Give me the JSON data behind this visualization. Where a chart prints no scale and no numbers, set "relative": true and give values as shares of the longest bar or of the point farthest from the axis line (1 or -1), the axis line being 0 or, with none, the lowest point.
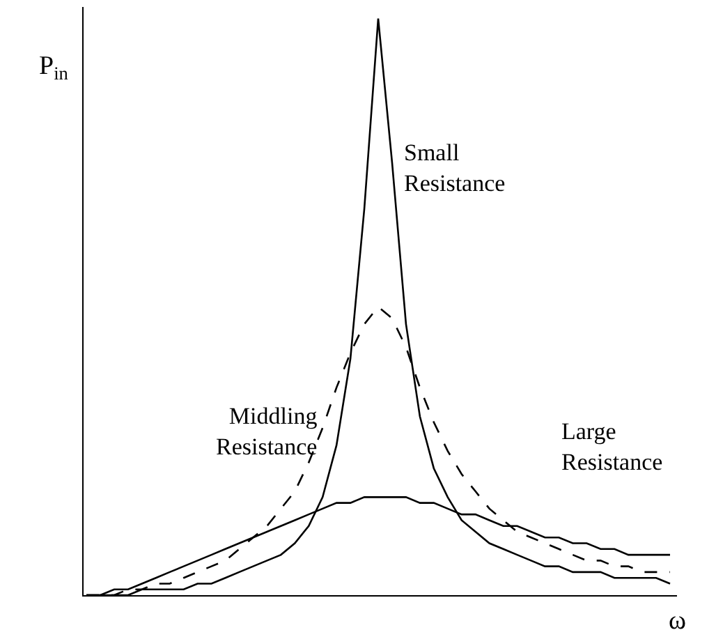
{
  "chart_data": {
    "type": "line",
    "relative": true,
    "xlabel": "ω",
    "ylabel": "P$_{in}$",
    "legend": false,
    "grid": false,
    "marker": "none",
    "categories": [
      null,
      null,
      null,
      null,
      null,
      null,
      null,
      null,
      null,
      null,
      null,
      null,
      null,
      null,
      null,
      null,
      null,
      null,
      null,
      null,
      null,
      null,
      null,
      null,
      null,
      null,
      null,
      null,
      null,
      null,
      null,
      null,
      null,
      null,
      null,
      null,
      null,
      null,
      null,
      null,
      null,
      null,
      null
    ],
    "series": [
      {
        "name": "Small Resistance",
        "color": "#000000",
        "line_style": "solid",
        "values": [
          0,
          0,
          0,
          0,
          0.01,
          0.01,
          0.01,
          0.01,
          0.02,
          0.02,
          0.03,
          0.04,
          0.05,
          0.06,
          0.07,
          0.09,
          0.12,
          0.17,
          0.26,
          0.41,
          0.67,
          1,
          0.75,
          0.47,
          0.31,
          0.22,
          0.17,
          0.13,
          0.11,
          0.09,
          0.08,
          0.07,
          0.06,
          0.05,
          0.05,
          0.04,
          0.04,
          0.04,
          0.03,
          0.03,
          0.03,
          0.03,
          0.02
        ]
      },
      {
        "name": "Middling Resistance",
        "color": "#000000",
        "line_style": "dashed",
        "values": [
          0,
          0,
          0,
          0.01,
          0.01,
          0.02,
          0.02,
          0.03,
          0.04,
          0.05,
          0.06,
          0.08,
          0.1,
          0.12,
          0.15,
          0.18,
          0.23,
          0.29,
          0.36,
          0.42,
          0.47,
          0.5,
          0.48,
          0.43,
          0.36,
          0.3,
          0.25,
          0.21,
          0.18,
          0.15,
          0.13,
          0.11,
          0.1,
          0.09,
          0.08,
          0.07,
          0.06,
          0.06,
          0.05,
          0.05,
          0.04,
          0.04,
          0.04
        ]
      },
      {
        "name": "Large Resistance",
        "color": "#000000",
        "line_style": "solid",
        "values": [
          0,
          0,
          0.01,
          0.01,
          0.02,
          0.03,
          0.04,
          0.05,
          0.06,
          0.07,
          0.08,
          0.09,
          0.1,
          0.11,
          0.12,
          0.13,
          0.14,
          0.15,
          0.16,
          0.16,
          0.17,
          0.17,
          0.17,
          0.17,
          0.16,
          0.16,
          0.15,
          0.14,
          0.14,
          0.13,
          0.12,
          0.12,
          0.11,
          0.1,
          0.1,
          0.09,
          0.09,
          0.08,
          0.08,
          0.07,
          0.07,
          0.07,
          0.07
        ]
      }
    ]
  }
}
